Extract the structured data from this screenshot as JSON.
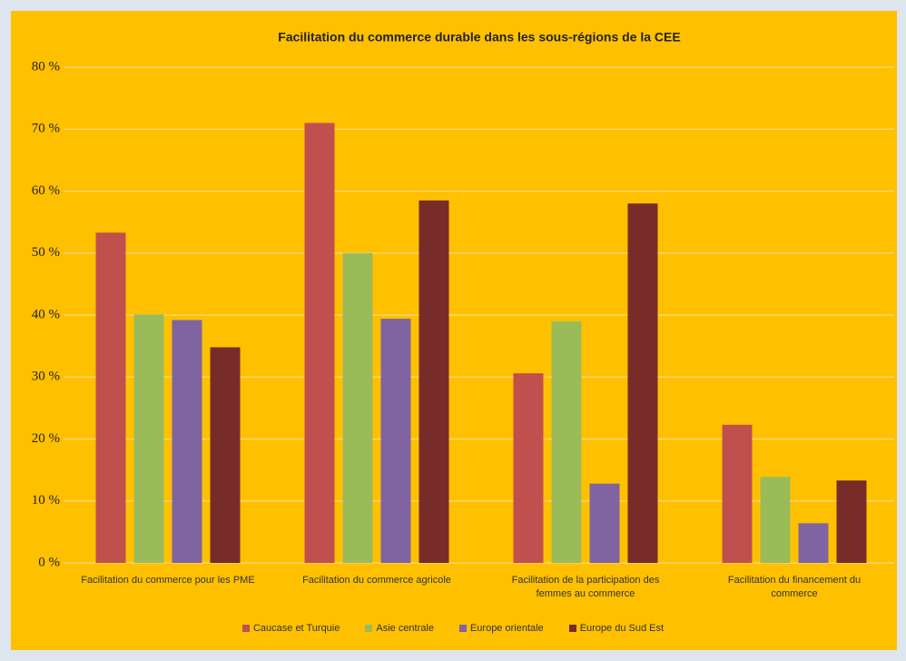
{
  "chart_data": {
    "type": "bar",
    "title": "Facilitation du commerce durable dans les sous-régions de la CEE",
    "categories": [
      "Facilitation du commerce pour les PME",
      "Facilitation du commerce agricole",
      "Facilitation de la participation des femmes au commerce",
      "Facilitation du financement du commerce"
    ],
    "series": [
      {
        "name": "Caucase et Turquie",
        "color": "#c0504d",
        "values": [
          53.3,
          71,
          30.6,
          22.3
        ]
      },
      {
        "name": "Asie centrale",
        "color": "#9bbb59",
        "values": [
          40.1,
          50,
          39,
          13.9
        ]
      },
      {
        "name": "Europe orientale",
        "color": "#8064a2",
        "values": [
          39.2,
          39.4,
          12.8,
          6.4
        ]
      },
      {
        "name": "Europe du Sud Est",
        "color": "#772c2a",
        "values": [
          34.8,
          58.5,
          58,
          13.3
        ]
      }
    ],
    "ylim": [
      0,
      80
    ],
    "yticks": [
      {
        "value": 0,
        "label": "0 %"
      },
      {
        "value": 10,
        "label": "10 %"
      },
      {
        "value": 20,
        "label": "20 %"
      },
      {
        "value": 30,
        "label": "30 %"
      },
      {
        "value": 40,
        "label": "40 %"
      },
      {
        "value": 50,
        "label": "50 %"
      },
      {
        "value": 60,
        "label": "60 %"
      },
      {
        "value": 70,
        "label": "70 %"
      },
      {
        "value": 80,
        "label": "80 %"
      }
    ],
    "grid": true,
    "legend": "bottom"
  }
}
